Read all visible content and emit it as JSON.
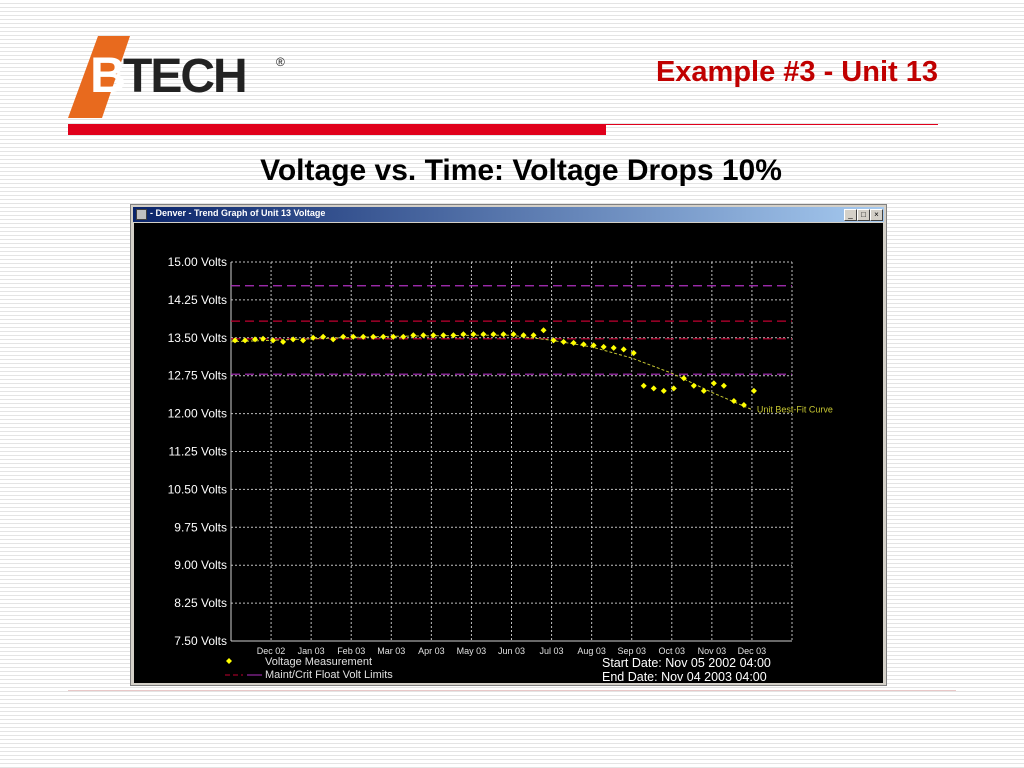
{
  "logo": {
    "text": "B TECH",
    "registered": "®"
  },
  "slide_title": "Example #3 - Unit 13",
  "subtitle": "Voltage vs. Time: Voltage Drops 10%",
  "window": {
    "title": "- Denver - Trend Graph of Unit 13 Voltage",
    "buttons": {
      "minimize": "_",
      "maximize": "□",
      "close": "×"
    }
  },
  "chart_data": {
    "type": "scatter",
    "title": "",
    "xlabel": "",
    "ylabel": "",
    "y_tick_labels": [
      "15.00 Volts",
      "14.25 Volts",
      "13.50 Volts",
      "12.75 Volts",
      "12.00 Volts",
      "11.25 Volts",
      "10.50 Volts",
      "9.75 Volts",
      "9.00 Volts",
      "8.25 Volts",
      "7.50 Volts"
    ],
    "y_ticks": [
      15.0,
      14.25,
      13.5,
      12.75,
      12.0,
      11.25,
      10.5,
      9.75,
      9.0,
      8.25,
      7.5
    ],
    "ylim": [
      7.5,
      15.0
    ],
    "x_tick_labels": [
      "Dec 02",
      "Jan 03",
      "Feb 03",
      "Mar 03",
      "Apr 03",
      "May 03",
      "Jun 03",
      "Jul 03",
      "Aug 03",
      "Sep 03",
      "Oct 03",
      "Nov 03",
      "Dec 03"
    ],
    "grid": true,
    "limit_lines": [
      {
        "value": 14.53,
        "color": "#b030c0"
      },
      {
        "value": 13.83,
        "color": "#c00030"
      },
      {
        "value": 13.48,
        "color": "#c00030"
      },
      {
        "value": 12.78,
        "color": "#b030c0"
      }
    ],
    "series": [
      {
        "name": "Voltage Measurement",
        "color": "#ffff00",
        "points": [
          {
            "x": 0.1,
            "y": 13.45
          },
          {
            "x": 0.35,
            "y": 13.45
          },
          {
            "x": 0.6,
            "y": 13.47
          },
          {
            "x": 0.8,
            "y": 13.48
          },
          {
            "x": 1.05,
            "y": 13.45
          },
          {
            "x": 1.3,
            "y": 13.42
          },
          {
            "x": 1.55,
            "y": 13.47
          },
          {
            "x": 1.8,
            "y": 13.45
          },
          {
            "x": 2.05,
            "y": 13.5
          },
          {
            "x": 2.3,
            "y": 13.52
          },
          {
            "x": 2.55,
            "y": 13.47
          },
          {
            "x": 2.8,
            "y": 13.52
          },
          {
            "x": 3.05,
            "y": 13.52
          },
          {
            "x": 3.3,
            "y": 13.52
          },
          {
            "x": 3.55,
            "y": 13.52
          },
          {
            "x": 3.8,
            "y": 13.52
          },
          {
            "x": 4.05,
            "y": 13.52
          },
          {
            "x": 4.3,
            "y": 13.52
          },
          {
            "x": 4.55,
            "y": 13.55
          },
          {
            "x": 4.8,
            "y": 13.55
          },
          {
            "x": 5.05,
            "y": 13.55
          },
          {
            "x": 5.3,
            "y": 13.55
          },
          {
            "x": 5.55,
            "y": 13.55
          },
          {
            "x": 5.8,
            "y": 13.57
          },
          {
            "x": 6.05,
            "y": 13.57
          },
          {
            "x": 6.3,
            "y": 13.57
          },
          {
            "x": 6.55,
            "y": 13.57
          },
          {
            "x": 6.8,
            "y": 13.57
          },
          {
            "x": 7.05,
            "y": 13.57
          },
          {
            "x": 7.3,
            "y": 13.55
          },
          {
            "x": 7.55,
            "y": 13.55
          },
          {
            "x": 7.8,
            "y": 13.65
          },
          {
            "x": 8.05,
            "y": 13.45
          },
          {
            "x": 8.3,
            "y": 13.42
          },
          {
            "x": 8.55,
            "y": 13.4
          },
          {
            "x": 8.8,
            "y": 13.37
          },
          {
            "x": 9.05,
            "y": 13.35
          },
          {
            "x": 9.3,
            "y": 13.32
          },
          {
            "x": 9.55,
            "y": 13.3
          },
          {
            "x": 9.8,
            "y": 13.27
          },
          {
            "x": 10.05,
            "y": 13.2
          },
          {
            "x": 10.3,
            "y": 12.55
          },
          {
            "x": 10.55,
            "y": 12.5
          },
          {
            "x": 10.8,
            "y": 12.45
          },
          {
            "x": 11.05,
            "y": 12.5
          },
          {
            "x": 11.3,
            "y": 12.7
          },
          {
            "x": 11.55,
            "y": 12.55
          },
          {
            "x": 11.8,
            "y": 12.45
          },
          {
            "x": 12.05,
            "y": 12.6
          },
          {
            "x": 12.3,
            "y": 12.55
          },
          {
            "x": 12.55,
            "y": 12.25
          },
          {
            "x": 12.8,
            "y": 12.17
          },
          {
            "x": 13.05,
            "y": 12.45
          }
        ]
      },
      {
        "name": "Unit Best-Fit Curve",
        "color": "#c8c832",
        "points": [
          {
            "x": 0,
            "y": 13.42
          },
          {
            "x": 2,
            "y": 13.48
          },
          {
            "x": 4,
            "y": 13.53
          },
          {
            "x": 6,
            "y": 13.55
          },
          {
            "x": 7,
            "y": 13.55
          },
          {
            "x": 8,
            "y": 13.45
          },
          {
            "x": 9,
            "y": 13.32
          },
          {
            "x": 10,
            "y": 13.1
          },
          {
            "x": 11,
            "y": 12.8
          },
          {
            "x": 12,
            "y": 12.42
          },
          {
            "x": 13,
            "y": 12.08
          }
        ]
      }
    ],
    "legend": {
      "measurement_label": "Voltage Measurement",
      "limits_label": "Maint/Crit Float Volt Limits",
      "curve_label": "Unit Best-Fit Curve"
    },
    "start_date": "Start Date: Nov 05 2002  04:00",
    "end_date": "End Date: Nov 04 2003  04:00"
  }
}
